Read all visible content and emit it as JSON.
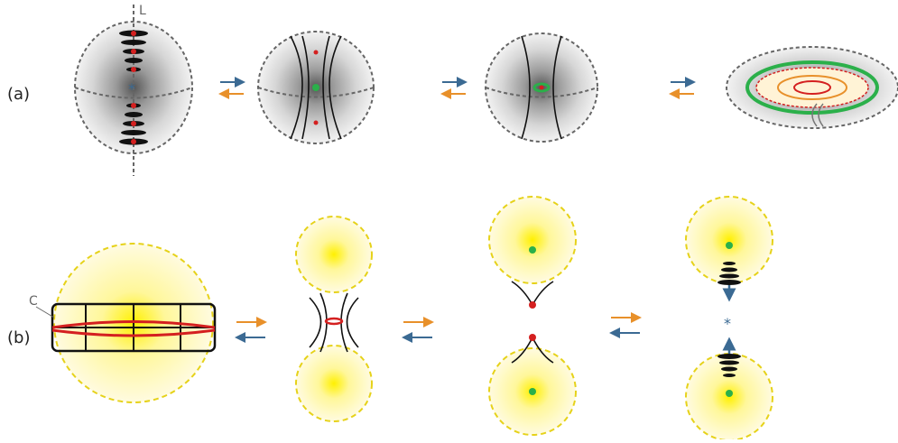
{
  "rows": [
    {
      "label": "(a)"
    },
    {
      "label": "(b)"
    }
  ],
  "annotations": {
    "axis_label": "L",
    "curve_label": "C"
  }
}
